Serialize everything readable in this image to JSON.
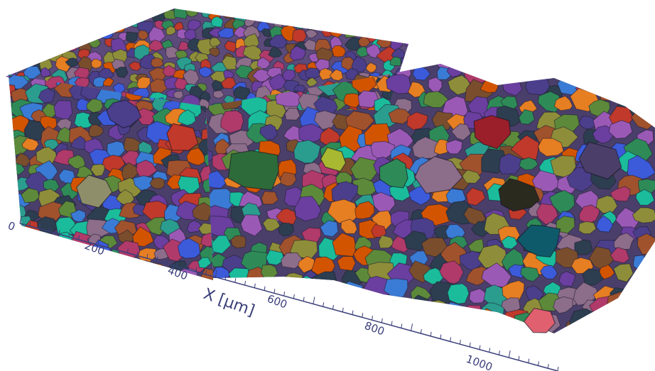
{
  "axis": {
    "title": "X [μm]",
    "ticks": [
      "0",
      "200",
      "400",
      "600",
      "800",
      "1000"
    ]
  },
  "colors": {
    "axis": "#3a3f7a",
    "grain_palette": [
      "#2e8b57",
      "#6a3fa0",
      "#c0392b",
      "#2a9d8f",
      "#4b3f8c",
      "#8e8e3a",
      "#d35400",
      "#3b5bdb",
      "#7a4e2d",
      "#9b59b6",
      "#1abc9c",
      "#e67e22",
      "#8c6d8a",
      "#b03a6a",
      "#5c8a3a",
      "#2c3e50",
      "#a0522d",
      "#3a7bd5"
    ]
  },
  "object": {
    "description_icon": "polycrystal-grain-block"
  }
}
